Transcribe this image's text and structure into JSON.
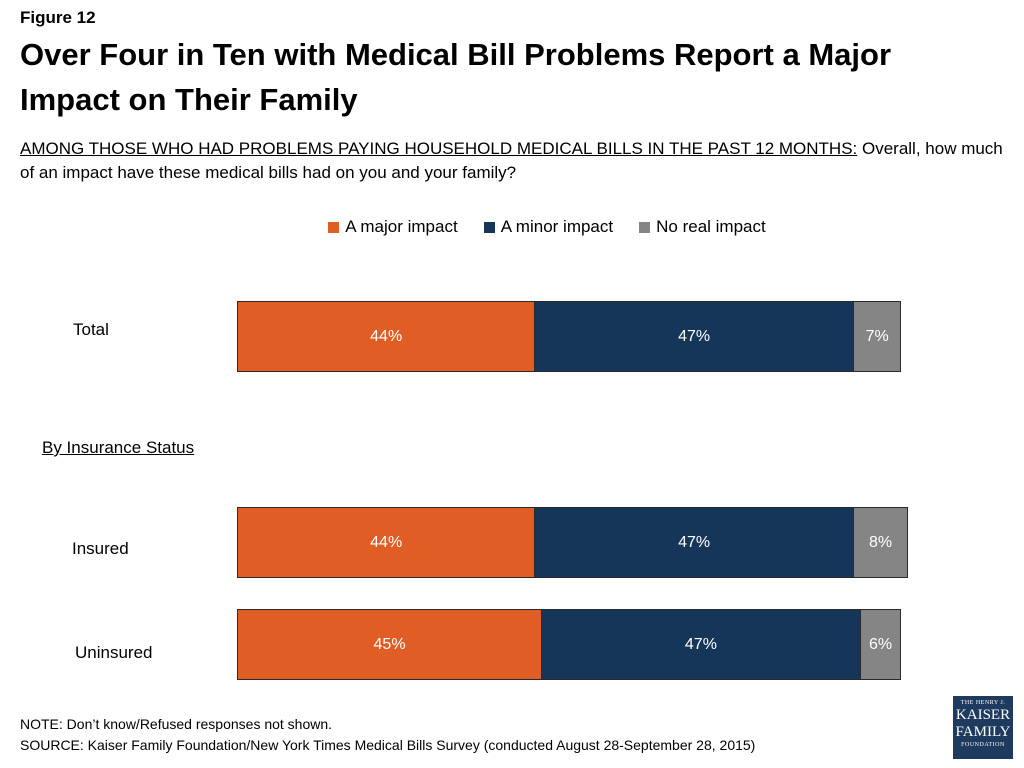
{
  "figure_label": "Figure 12",
  "title": "Over Four in Ten with Medical Bill Problems Report a Major Impact on Their Family",
  "question": {
    "prefix": "AMONG THOSE WHO HAD PROBLEMS PAYING HOUSEHOLD MEDICAL BILLS IN THE PAST 12 MONTHS:",
    "text": " Overall, how much of an impact have these medical bills had on you and your family?"
  },
  "section_label": "By Insurance Status",
  "colors": {
    "major": "#e05d26",
    "minor": "#163659",
    "none": "#858585"
  },
  "chart_data": {
    "type": "bar",
    "orientation": "horizontal",
    "stacked": true,
    "legend_position": "top-center",
    "categories": [
      "Total",
      "Insured",
      "Uninsured"
    ],
    "series": [
      {
        "name": "A major impact",
        "values": [
          44,
          44,
          45
        ],
        "labels": [
          "44%",
          "44%",
          "45%"
        ]
      },
      {
        "name": "A minor impact",
        "values": [
          47,
          47,
          47
        ],
        "labels": [
          "47%",
          "47%",
          "47%"
        ]
      },
      {
        "name": "No real impact",
        "values": [
          7,
          8,
          6
        ],
        "labels": [
          "7%",
          "8%",
          "6%"
        ]
      }
    ]
  },
  "note": "NOTE: Don’t know/Refused responses not shown.",
  "source": "SOURCE: Kaiser Family Foundation/New York Times Medical Bills Survey (conducted August 28-September 28, 2015)",
  "logo": {
    "line1": "THE HENRY J.",
    "line2": "KAISER",
    "line3": "FAMILY",
    "line4": "FOUNDATION"
  }
}
